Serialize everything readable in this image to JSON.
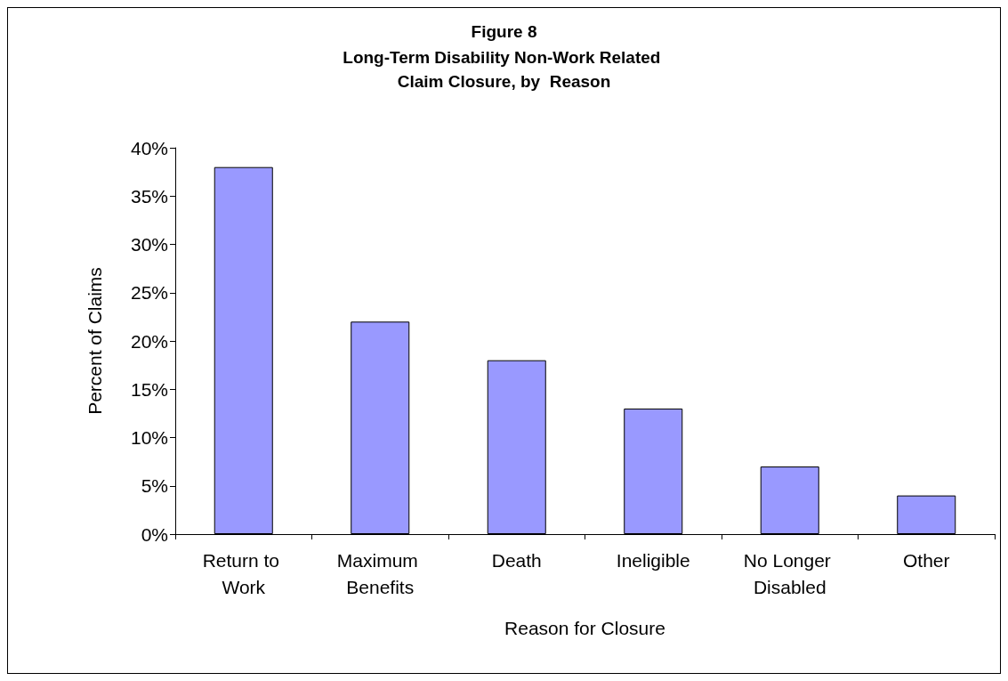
{
  "chart_data": {
    "type": "bar",
    "title": "Figure 8",
    "subtitle": "Long-Term Disability Non-Work Related Claim Closure, by  Reason",
    "xlabel": "Reason for Closure",
    "ylabel": "Percent of Claims",
    "categories": [
      "Return to Work",
      "Maximum Benefits",
      "Death",
      "Ineligible",
      "No Longer Disabled",
      "Other"
    ],
    "values": [
      38,
      22,
      18,
      13,
      7,
      4
    ],
    "color": "#9999ff",
    "ylim": [
      0,
      40
    ],
    "yticks": [
      {
        "value": 0,
        "label": "0%"
      },
      {
        "value": 5,
        "label": "5%"
      },
      {
        "value": 10,
        "label": "10%"
      },
      {
        "value": 15,
        "label": "15%"
      },
      {
        "value": 20,
        "label": "20%"
      },
      {
        "value": 25,
        "label": "25%"
      },
      {
        "value": 30,
        "label": "30%"
      },
      {
        "value": 35,
        "label": "35%"
      },
      {
        "value": 40,
        "label": "40%"
      }
    ],
    "grid": false
  }
}
